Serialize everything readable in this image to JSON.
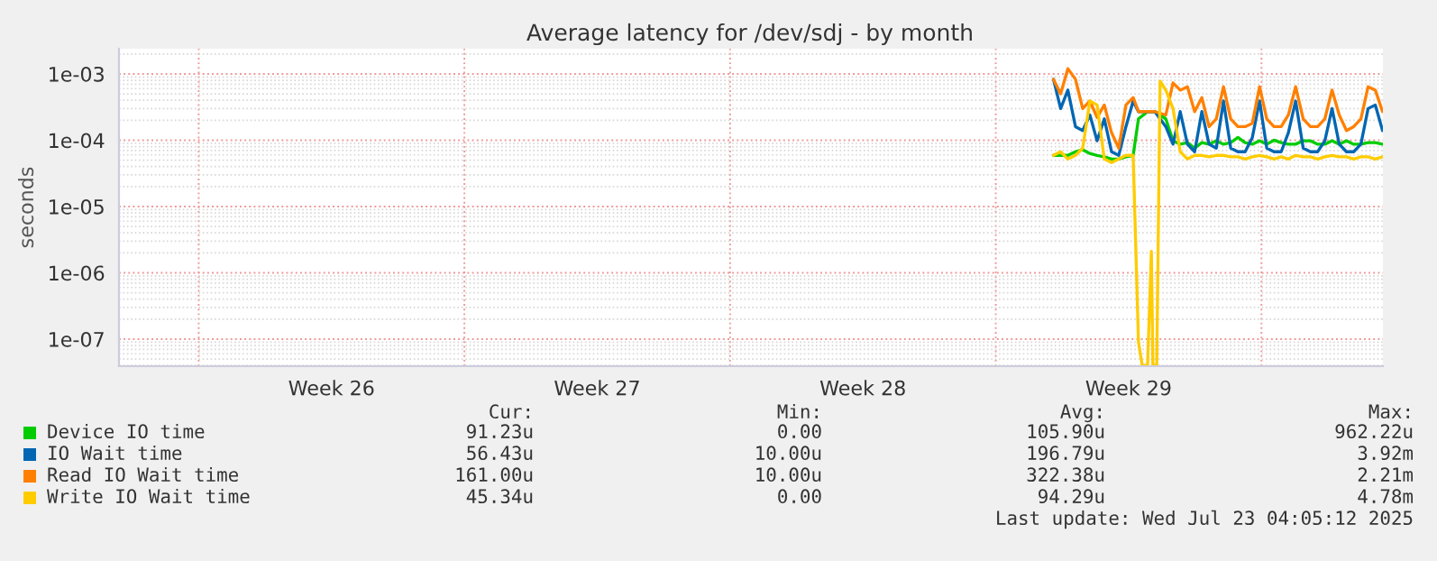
{
  "chart_data": {
    "type": "line",
    "title": "Average latency for /dev/sdj - by month",
    "ylabel": "seconds",
    "log": "y",
    "grid": true,
    "legend": "bottom",
    "xlim": [
      "2025-06-19T21:36",
      "2025-07-23T04:48"
    ],
    "xticks": [
      {
        "value": "2025-06-22",
        "label": null
      },
      {
        "value": "2025-06-25T12:00",
        "label": "Week 26"
      },
      {
        "value": "2025-06-29",
        "label": null
      },
      {
        "value": "2025-07-02T12:00",
        "label": "Week 27"
      },
      {
        "value": "2025-07-06",
        "label": null
      },
      {
        "value": "2025-07-09T12:00",
        "label": "Week 28"
      },
      {
        "value": "2025-07-13",
        "label": null
      },
      {
        "value": "2025-07-16T12:00",
        "label": "Week 29"
      },
      {
        "value": "2025-07-20",
        "label": null
      }
    ],
    "ylim": [
      3.9e-08,
      0.0024
    ],
    "yticks": [
      {
        "value": 1e-07,
        "label": "1e-07"
      },
      {
        "value": 1e-06,
        "label": "1e-06"
      },
      {
        "value": 1e-05,
        "label": "1e-05"
      },
      {
        "value": 0.0001,
        "label": "1e-04"
      },
      {
        "value": 0.001,
        "label": "1e-03"
      }
    ],
    "x": [
      "2025-07-14T12:29",
      "2025-07-14T17:02",
      "2025-07-14T21:36",
      "2025-07-15T02:24",
      "2025-07-15T06:58",
      "2025-07-15T11:31",
      "2025-07-15T16:05",
      "2025-07-15T20:38",
      "2025-07-16T01:12",
      "2025-07-16T05:46",
      "2025-07-16T10:19",
      "2025-07-16T14:53",
      "2025-07-16T18:14",
      "2025-07-17T00:00",
      "2025-07-17T04:34",
      "2025-07-17T11:31",
      "2025-07-17T16:05",
      "2025-07-17T20:38",
      "2025-07-18T01:12",
      "2025-07-18T05:46",
      "2025-07-18T10:19",
      "2025-07-18T14:53",
      "2025-07-18T19:26",
      "2025-07-19T00:00",
      "2025-07-19T04:34",
      "2025-07-19T09:07",
      "2025-07-19T13:41",
      "2025-07-19T18:14",
      "2025-07-19T22:48",
      "2025-07-20T03:22",
      "2025-07-20T07:55",
      "2025-07-20T12:29",
      "2025-07-20T17:02",
      "2025-07-20T21:36",
      "2025-07-21T02:24",
      "2025-07-21T06:58",
      "2025-07-21T11:31",
      "2025-07-21T16:05",
      "2025-07-21T20:38",
      "2025-07-22T01:12",
      "2025-07-22T05:46",
      "2025-07-22T10:19",
      "2025-07-22T14:53",
      "2025-07-22T19:26",
      "2025-07-23T00:00",
      "2025-07-23T04:34"
    ],
    "series": [
      {
        "name": "Device IO time",
        "color": "#00cc00",
        "values": [
          5.9e-05,
          5.9e-05,
          5.9e-05,
          6.7e-05,
          7.2e-05,
          6.3e-05,
          5.9e-05,
          5.6e-05,
          5.2e-05,
          5.2e-05,
          5.6e-05,
          5.9e-05,
          0.00021,
          0.00027,
          0.00027,
          0.00021,
          9.8e-05,
          8.7e-05,
          9.2e-05,
          7.6e-05,
          9.2e-05,
          8.7e-05,
          9.8e-05,
          8.7e-05,
          9.2e-05,
          0.00011,
          9.2e-05,
          8.7e-05,
          9.8e-05,
          8.7e-05,
          0.0001,
          9.2e-05,
          8.7e-05,
          8.7e-05,
          9.8e-05,
          9.8e-05,
          8.7e-05,
          8.7e-05,
          9.8e-05,
          8.7e-05,
          9.8e-05,
          8.7e-05,
          8.7e-05,
          9.2e-05,
          9.2e-05,
          8.7e-05
        ]
      },
      {
        "name": "IO Wait time",
        "color": "#0066b3",
        "values": [
          0.00083,
          0.0003,
          0.00057,
          0.00016,
          0.00014,
          0.00024,
          9.8e-05,
          0.00021,
          6.7e-05,
          5.9e-05,
          0.00016,
          0.00039,
          0.00027,
          0.00027,
          0.00027,
          0.00016,
          8.7e-05,
          0.00027,
          8.7e-05,
          6.7e-05,
          0.00027,
          8.7e-05,
          7.6e-05,
          0.00039,
          7.6e-05,
          6.7e-05,
          6.7e-05,
          0.00011,
          0.00039,
          7.6e-05,
          6.7e-05,
          6.7e-05,
          0.00013,
          0.00039,
          7.6e-05,
          6.7e-05,
          6.7e-05,
          9.8e-05,
          0.0003,
          8.7e-05,
          6.7e-05,
          6.7e-05,
          8.7e-05,
          0.0003,
          0.00034,
          0.00014
        ]
      },
      {
        "name": "Read IO Wait time",
        "color": "#ff8000",
        "values": [
          0.00083,
          0.0005,
          0.0012,
          0.00083,
          0.0003,
          0.00039,
          0.00022,
          0.00034,
          0.00013,
          7.6e-05,
          0.00034,
          0.00044,
          0.00027,
          0.00027,
          0.00027,
          0.00024,
          0.00073,
          0.00057,
          0.00064,
          0.00027,
          0.00044,
          0.00016,
          0.00021,
          0.00064,
          0.00021,
          0.00016,
          0.00016,
          0.00018,
          0.00064,
          0.00021,
          0.00016,
          0.00016,
          0.00024,
          0.00064,
          0.00021,
          0.00016,
          0.00016,
          0.00021,
          0.00057,
          0.00024,
          0.00014,
          0.00016,
          0.00021,
          0.00064,
          0.00057,
          0.00027
        ]
      },
      {
        "name": "Write IO Wait time",
        "color": "#ffcc00",
        "x": [
          "2025-07-14T12:29",
          "2025-07-14T17:02",
          "2025-07-14T21:36",
          "2025-07-15T02:24",
          "2025-07-15T06:58",
          "2025-07-15T11:31",
          "2025-07-15T16:05",
          "2025-07-15T20:38",
          "2025-07-16T01:12",
          "2025-07-16T05:46",
          "2025-07-16T10:19",
          "2025-07-16T14:53",
          "2025-07-16T18:14",
          "2025-07-16T20:38",
          "2025-07-17T00:00",
          "2025-07-17T02:24",
          "2025-07-17T03:22",
          "2025-07-17T05:46",
          "2025-07-17T07:55",
          "2025-07-17T11:31",
          "2025-07-17T16:05",
          "2025-07-17T20:38",
          "2025-07-18T01:12",
          "2025-07-18T05:46",
          "2025-07-18T10:19",
          "2025-07-18T14:53",
          "2025-07-18T19:26",
          "2025-07-19T00:00",
          "2025-07-19T04:34",
          "2025-07-19T09:07",
          "2025-07-19T13:41",
          "2025-07-19T18:14",
          "2025-07-19T22:48",
          "2025-07-20T03:22",
          "2025-07-20T07:55",
          "2025-07-20T12:29",
          "2025-07-20T17:02",
          "2025-07-20T21:36",
          "2025-07-21T02:24",
          "2025-07-21T06:58",
          "2025-07-21T11:31",
          "2025-07-21T16:05",
          "2025-07-21T20:38",
          "2025-07-22T01:12",
          "2025-07-22T05:46",
          "2025-07-22T10:19",
          "2025-07-22T14:53",
          "2025-07-22T19:26",
          "2025-07-23T00:00",
          "2025-07-23T04:34"
        ],
        "values": [
          5.9e-05,
          6.7e-05,
          5.2e-05,
          5.9e-05,
          7.6e-05,
          0.00039,
          0.00034,
          5.2e-05,
          4.6e-05,
          5.2e-05,
          5.9e-05,
          5.9e-05,
          9e-08,
          4e-08,
          4e-08,
          2.1e-06,
          4e-08,
          4e-08,
          0.00078,
          0.00057,
          0.0003,
          6.7e-05,
          5.2e-05,
          5.9e-05,
          5.9e-05,
          5.6e-05,
          5.9e-05,
          5.9e-05,
          5.6e-05,
          5.6e-05,
          5.2e-05,
          5.6e-05,
          5.9e-05,
          5.6e-05,
          5.2e-05,
          5.6e-05,
          5.2e-05,
          5.9e-05,
          5.6e-05,
          5.6e-05,
          5.2e-05,
          5.6e-05,
          5.9e-05,
          5.6e-05,
          5.6e-05,
          5.2e-05,
          5.6e-05,
          5.6e-05,
          5.2e-05,
          5.6e-05
        ]
      }
    ],
    "annotations": [
      "Cur:",
      "Min:",
      "Avg:",
      "Max:",
      "91.23u",
      "0.00",
      "105.90u",
      "962.22u",
      "56.43u",
      "10.00u",
      "196.79u",
      "3.92m",
      "161.00u",
      "10.00u",
      "322.38u",
      "2.21m",
      "45.34u",
      "0.00",
      "94.29u",
      "4.78m",
      "Last update: Wed Jul 23 04:05:12 2025"
    ]
  }
}
